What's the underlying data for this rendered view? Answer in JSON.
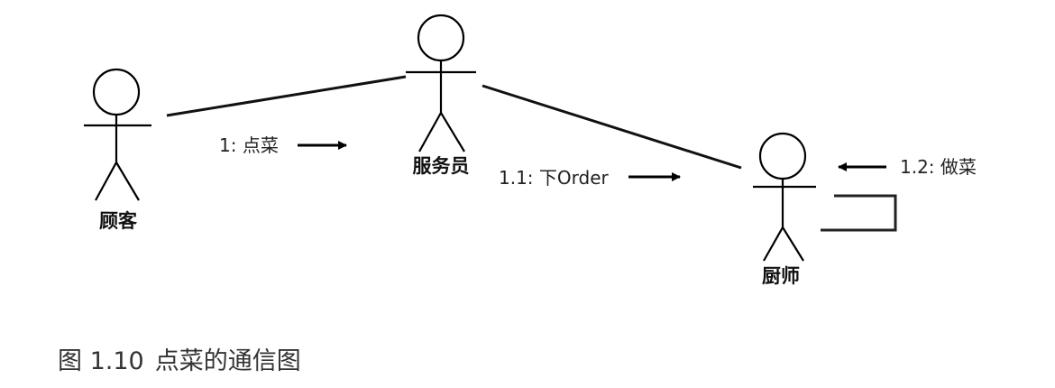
{
  "actors": {
    "customer": "顾客",
    "waiter": "服务员",
    "chef": "厨师"
  },
  "messages": {
    "m1": "1: 点菜",
    "m11": "1.1: 下Order",
    "m12": "1.2: 做菜"
  },
  "caption": {
    "figure_number": "图 1.10",
    "title": "点菜的通信图"
  }
}
